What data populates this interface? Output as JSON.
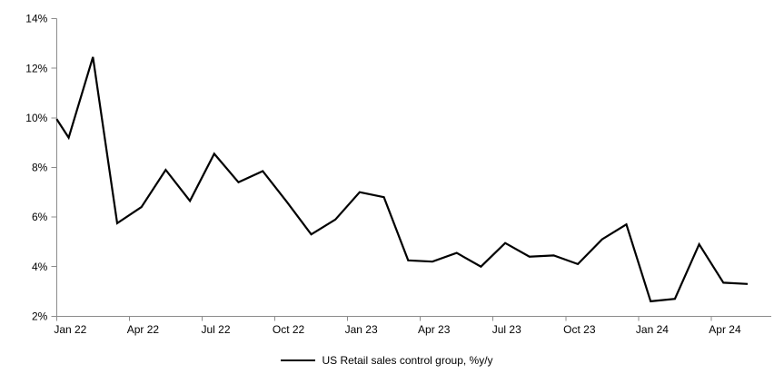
{
  "chart_data": {
    "type": "line",
    "title": "",
    "legend": "US Retail sales control group, %y/y",
    "legend_position": "bottom-center",
    "grid": "off",
    "background": "#ffffff",
    "line_color": "#000000",
    "axis_color": "#8c8c8c",
    "label_color": "#000000",
    "ylim": [
      2,
      14
    ],
    "ytick_values": [
      2,
      4,
      6,
      8,
      10,
      12,
      14
    ],
    "ytick_labels": [
      "2%",
      "4%",
      "6%",
      "8%",
      "10%",
      "12%",
      "14%"
    ],
    "xtick_labels": [
      "Jan 22",
      "Apr 22",
      "Jul 22",
      "Oct 22",
      "Jan 23",
      "Apr 23",
      "Jul 23",
      "Oct 23",
      "Jan 24",
      "Apr 24"
    ],
    "xlabel_interval_months": 3,
    "left_edge_clip_value": 9.95,
    "categories": [
      "Jan 22",
      "Feb 22",
      "Mar 22",
      "Apr 22",
      "May 22",
      "Jun 22",
      "Jul 22",
      "Aug 22",
      "Sep 22",
      "Oct 22",
      "Nov 22",
      "Dec 22",
      "Jan 23",
      "Feb 23",
      "Mar 23",
      "Apr 23",
      "May 23",
      "Jun 23",
      "Jul 23",
      "Aug 23",
      "Sep 23",
      "Oct 23",
      "Nov 23",
      "Dec 23",
      "Jan 24",
      "Feb 24",
      "Mar 24",
      "Apr 24",
      "May 24"
    ],
    "values": [
      9.2,
      12.45,
      5.75,
      6.4,
      7.9,
      6.65,
      8.55,
      7.4,
      7.85,
      6.6,
      5.3,
      5.9,
      7.0,
      6.8,
      4.25,
      4.2,
      4.55,
      4.0,
      4.95,
      4.4,
      4.45,
      4.1,
      5.1,
      5.7,
      2.6,
      2.7,
      4.9,
      3.35,
      3.3
    ]
  }
}
